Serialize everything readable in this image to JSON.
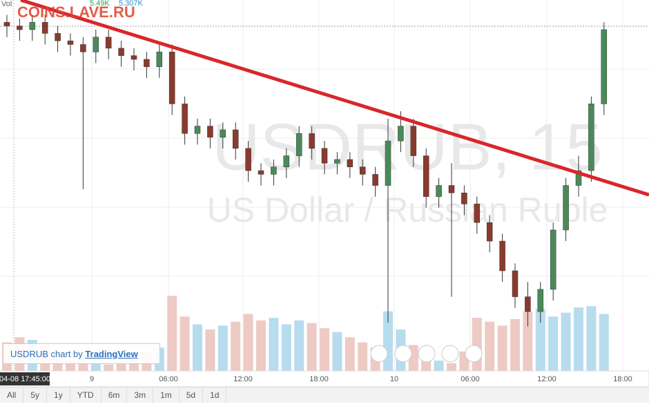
{
  "header": {
    "watermark": "COINS.LAVE.RU",
    "volume_label": "Vol",
    "volume_value": "5.49K",
    "volume_average": "5.307K"
  },
  "chart_data": {
    "type": "candlestick",
    "title": "USDRUB, 15",
    "subtitle": "US Dollar / Russian Ruble",
    "ylim": [
      0,
      100
    ],
    "volume_ylim": [
      0,
      8
    ],
    "up_color": "#4a8a5a",
    "down_color": "#8b3a2e",
    "open": [
      94,
      93,
      92,
      94,
      91,
      89,
      88,
      86,
      90,
      87,
      85,
      84,
      82,
      86,
      72,
      64,
      66,
      63,
      65,
      60,
      54,
      53,
      55,
      58,
      64,
      60,
      56,
      57,
      55,
      53,
      50,
      62,
      66,
      58,
      47,
      50,
      48,
      45,
      40,
      35,
      27,
      20,
      16,
      22,
      38,
      50,
      54,
      72
    ],
    "high": [
      96,
      95,
      96,
      96,
      93,
      91,
      90,
      92,
      92,
      89,
      87,
      86,
      88,
      88,
      74,
      68,
      68,
      67,
      67,
      62,
      56,
      57,
      60,
      66,
      66,
      62,
      59,
      59,
      57,
      55,
      68,
      70,
      68,
      60,
      52,
      56,
      50,
      47,
      42,
      37,
      29,
      24,
      24,
      40,
      52,
      58,
      74,
      94
    ],
    "low": [
      90,
      89,
      89,
      88,
      86,
      85,
      49,
      83,
      84,
      82,
      81,
      79,
      79,
      69,
      61,
      61,
      60,
      60,
      57,
      51,
      50,
      50,
      52,
      55,
      57,
      53,
      53,
      52,
      50,
      47,
      13,
      59,
      55,
      44,
      44,
      20,
      42,
      37,
      32,
      24,
      17,
      12,
      13,
      19,
      35,
      47,
      51,
      69
    ],
    "close": [
      93,
      92,
      94,
      91,
      89,
      88,
      86,
      90,
      87,
      85,
      84,
      82,
      86,
      72,
      64,
      66,
      63,
      65,
      60,
      54,
      53,
      55,
      58,
      64,
      60,
      56,
      57,
      55,
      53,
      50,
      62,
      66,
      58,
      47,
      50,
      48,
      45,
      40,
      35,
      27,
      20,
      16,
      22,
      38,
      50,
      54,
      72,
      92
    ],
    "volume": [
      2.2,
      2.6,
      2.4,
      2.0,
      1.5,
      0.8,
      1.2,
      0.6,
      0.5,
      0.7,
      0.9,
      1.4,
      1.8,
      5.8,
      4.2,
      3.6,
      3.2,
      3.5,
      3.8,
      4.4,
      3.9,
      4.1,
      3.6,
      3.9,
      3.7,
      3.3,
      3.0,
      2.6,
      2.2,
      1.8,
      4.6,
      3.2,
      2.0,
      1.2,
      0.8,
      0.6,
      1.5,
      4.1,
      3.8,
      3.5,
      4.0,
      4.6,
      4.8,
      4.2,
      4.5,
      4.9,
      5.0,
      4.4
    ]
  },
  "time_axis": {
    "cursor_label": "04-08 17:45:00",
    "labels": [
      "9",
      "06:00",
      "12:00",
      "18:00",
      "10",
      "06:00",
      "12:00",
      "18:00"
    ]
  },
  "attribution": {
    "symbol": "USDRUB",
    "text": "chart by",
    "link": "TradingView"
  },
  "toolbar": [
    "All",
    "5y",
    "1y",
    "YTD",
    "6m",
    "3m",
    "1m",
    "5d",
    "1d"
  ]
}
